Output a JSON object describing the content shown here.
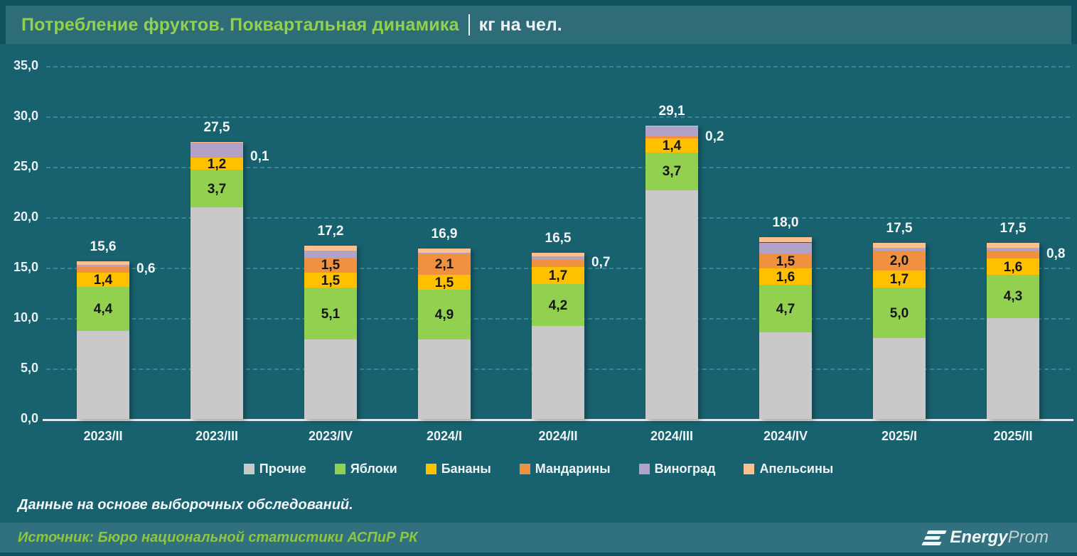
{
  "header": {
    "title_green": "Потребление фруктов. Поквартальная динамика",
    "title_white": "кг на чел."
  },
  "chart_data": {
    "type": "bar",
    "stacked": true,
    "title": "Потребление фруктов. Поквартальная динамика",
    "unit": "кг на чел.",
    "ylim": [
      0,
      35
    ],
    "y_tick_step": 5,
    "y_tick_labels": [
      "0,0",
      "5,0",
      "10,0",
      "15,0",
      "20,0",
      "25,0",
      "30,0",
      "35,0"
    ],
    "grid": "horizontal-dashed",
    "legend_position": "bottom",
    "categories": [
      "2023/II",
      "2023/III",
      "2023/IV",
      "2024/I",
      "2024/II",
      "2024/III",
      "2024/IV",
      "2025/I",
      "2025/II"
    ],
    "totals": [
      15.6,
      27.5,
      17.2,
      16.9,
      16.5,
      29.1,
      18.0,
      17.5,
      17.5
    ],
    "total_labels": [
      "15,6",
      "27,5",
      "17,2",
      "16,9",
      "16,5",
      "29,1",
      "18,0",
      "17,5",
      "17,5"
    ],
    "series": [
      {
        "name": "Прочие",
        "color": "#c9c9c9",
        "values": [
          8.7,
          21.0,
          7.9,
          7.9,
          9.2,
          22.7,
          8.6,
          8.0,
          10.0
        ],
        "labels": [
          null,
          null,
          null,
          null,
          null,
          null,
          null,
          null,
          null
        ]
      },
      {
        "name": "Яблоки",
        "color": "#92d050",
        "values": [
          4.4,
          3.7,
          5.1,
          4.9,
          4.2,
          3.7,
          4.7,
          5.0,
          4.3
        ],
        "labels": [
          {
            "text": "4,4",
            "pos": "inside"
          },
          {
            "text": "3,7",
            "pos": "inside"
          },
          {
            "text": "5,1",
            "pos": "inside"
          },
          {
            "text": "4,9",
            "pos": "inside"
          },
          {
            "text": "4,2",
            "pos": "inside"
          },
          {
            "text": "3,7",
            "pos": "inside"
          },
          {
            "text": "4,7",
            "pos": "inside"
          },
          {
            "text": "5,0",
            "pos": "inside"
          },
          {
            "text": "4,3",
            "pos": "inside"
          }
        ]
      },
      {
        "name": "Бананы",
        "color": "#ffc000",
        "values": [
          1.4,
          1.2,
          1.5,
          1.5,
          1.7,
          1.4,
          1.6,
          1.7,
          1.6
        ],
        "labels": [
          {
            "text": "1,4",
            "pos": "inside"
          },
          {
            "text": "1,2",
            "pos": "inside"
          },
          {
            "text": "1,5",
            "pos": "inside"
          },
          {
            "text": "1,5",
            "pos": "inside"
          },
          {
            "text": "1,7",
            "pos": "inside"
          },
          {
            "text": "1,4",
            "pos": "inside"
          },
          {
            "text": "1,6",
            "pos": "inside"
          },
          {
            "text": "1,7",
            "pos": "inside"
          },
          {
            "text": "1,6",
            "pos": "inside"
          }
        ]
      },
      {
        "name": "Мандарины",
        "color": "#f0913f",
        "values": [
          0.6,
          0.1,
          1.5,
          2.1,
          0.7,
          0.2,
          1.5,
          2.0,
          0.8
        ],
        "labels": [
          {
            "text": "0,6",
            "pos": "side"
          },
          {
            "text": "0,1",
            "pos": "side"
          },
          {
            "text": "1,5",
            "pos": "inside"
          },
          {
            "text": "2,1",
            "pos": "inside"
          },
          {
            "text": "0,7",
            "pos": "side"
          },
          {
            "text": "0,2",
            "pos": "side"
          },
          {
            "text": "1,5",
            "pos": "inside"
          },
          {
            "text": "2,0",
            "pos": "inside"
          },
          {
            "text": "0,8",
            "pos": "side"
          }
        ]
      },
      {
        "name": "Виноград",
        "color": "#b3a2c7",
        "values": [
          0.2,
          1.4,
          0.7,
          0.1,
          0.3,
          1.0,
          1.1,
          0.3,
          0.3
        ],
        "labels": [
          null,
          null,
          null,
          null,
          null,
          null,
          null,
          null,
          null
        ]
      },
      {
        "name": "Апельсины",
        "color": "#fac090",
        "values": [
          0.3,
          0.1,
          0.5,
          0.4,
          0.4,
          0.1,
          0.5,
          0.5,
          0.5
        ],
        "labels": [
          null,
          null,
          null,
          null,
          null,
          null,
          null,
          null,
          null
        ]
      }
    ]
  },
  "footnote": "Данные на основе выборочных обследований.",
  "source": "Источник: Бюро национальной статистики АСПиР РК",
  "logo": {
    "bold": "Energy",
    "light": "Prom"
  },
  "colors": {
    "background": "#18616f",
    "header_band": "#2e6c78",
    "frame": "#11525f",
    "gridline": "#3e8e9e",
    "axis_line": "#dde8ea",
    "title_accent": "#92d050",
    "source_accent": "#8dc63f"
  }
}
